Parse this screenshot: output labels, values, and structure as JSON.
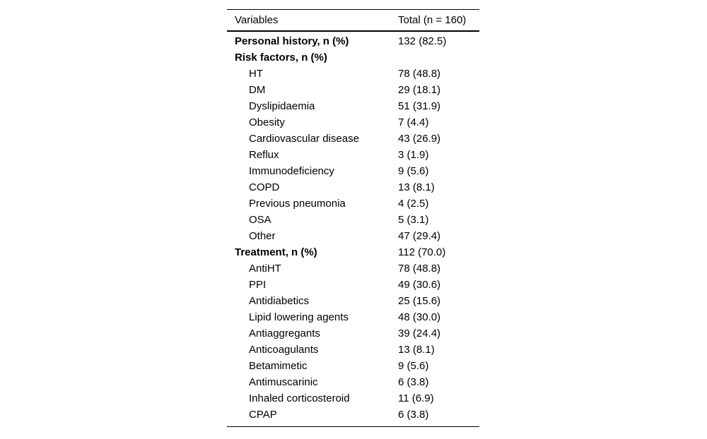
{
  "table": {
    "header": {
      "variables": "Variables",
      "total": "Total (n = 160)"
    },
    "rows": [
      {
        "label": "Personal history, n (%)",
        "value": "132 (82.5)"
      },
      {
        "label": "Risk factors, n (%)",
        "value": ""
      },
      {
        "label": "HT",
        "value": "78 (48.8)"
      },
      {
        "label": "DM",
        "value": "29 (18.1)"
      },
      {
        "label": "Dyslipidaemia",
        "value": "51 (31.9)"
      },
      {
        "label": "Obesity",
        "value": "7 (4.4)"
      },
      {
        "label": "Cardiovascular disease",
        "value": "43 (26.9)"
      },
      {
        "label": "Reflux",
        "value": "3 (1.9)"
      },
      {
        "label": "Immunodeficiency",
        "value": "9 (5.6)"
      },
      {
        "label": "COPD",
        "value": "13 (8.1)"
      },
      {
        "label": "Previous pneumonia",
        "value": "4 (2.5)"
      },
      {
        "label": "OSA",
        "value": "5 (3.1)"
      },
      {
        "label": "Other",
        "value": "47 (29.4)"
      },
      {
        "label": "Treatment, n (%)",
        "value": "112 (70.0)"
      },
      {
        "label": "AntiHT",
        "value": "78 (48.8)"
      },
      {
        "label": "PPI",
        "value": "49 (30.6)"
      },
      {
        "label": "Antidiabetics",
        "value": "25 (15.6)"
      },
      {
        "label": "Lipid lowering agents",
        "value": "48 (30.0)"
      },
      {
        "label": "Antiaggregants",
        "value": "39 (24.4)"
      },
      {
        "label": "Anticoagulants",
        "value": "13 (8.1)"
      },
      {
        "label": "Betamimetic",
        "value": "9 (5.6)"
      },
      {
        "label": "Antimuscarinic",
        "value": "6 (3.8)"
      },
      {
        "label": "Inhaled corticosteroid",
        "value": "11 (6.9)"
      },
      {
        "label": "CPAP",
        "value": "6 (3.8)"
      }
    ]
  }
}
